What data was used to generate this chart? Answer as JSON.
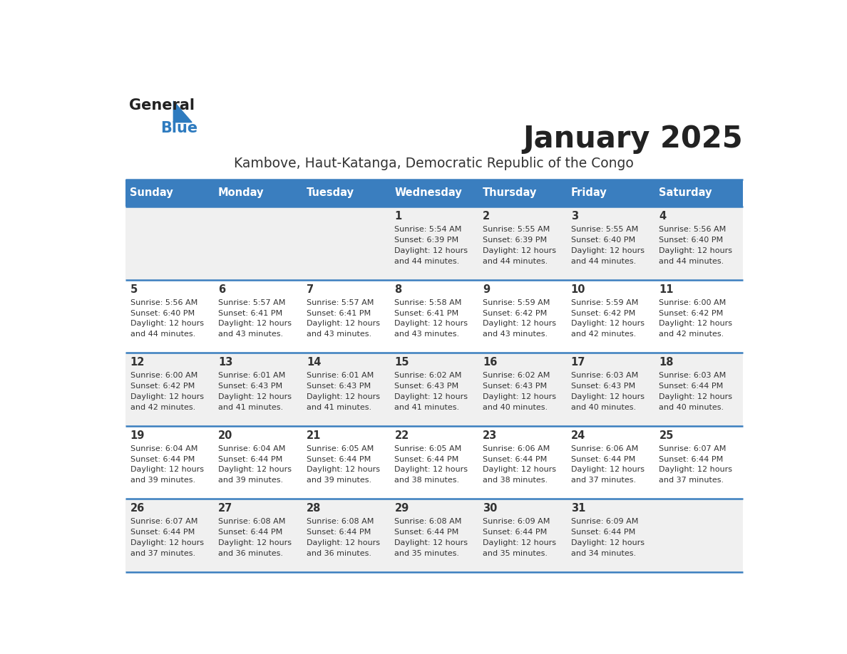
{
  "title": "January 2025",
  "subtitle": "Kambove, Haut-Katanga, Democratic Republic of the Congo",
  "days_of_week": [
    "Sunday",
    "Monday",
    "Tuesday",
    "Wednesday",
    "Thursday",
    "Friday",
    "Saturday"
  ],
  "header_bg": "#3a7ebf",
  "header_text": "#ffffff",
  "row_bg_odd": "#f0f0f0",
  "row_bg_even": "#ffffff",
  "separator_color": "#3a7ebf",
  "title_color": "#222222",
  "subtitle_color": "#333333",
  "day_number_color": "#333333",
  "cell_text_color": "#333333",
  "calendar_data": [
    {
      "day": 1,
      "col": 3,
      "row": 0,
      "sunrise": "5:54 AM",
      "sunset": "6:39 PM",
      "dl_line1": "Daylight: 12 hours",
      "dl_line2": "and 44 minutes."
    },
    {
      "day": 2,
      "col": 4,
      "row": 0,
      "sunrise": "5:55 AM",
      "sunset": "6:39 PM",
      "dl_line1": "Daylight: 12 hours",
      "dl_line2": "and 44 minutes."
    },
    {
      "day": 3,
      "col": 5,
      "row": 0,
      "sunrise": "5:55 AM",
      "sunset": "6:40 PM",
      "dl_line1": "Daylight: 12 hours",
      "dl_line2": "and 44 minutes."
    },
    {
      "day": 4,
      "col": 6,
      "row": 0,
      "sunrise": "5:56 AM",
      "sunset": "6:40 PM",
      "dl_line1": "Daylight: 12 hours",
      "dl_line2": "and 44 minutes."
    },
    {
      "day": 5,
      "col": 0,
      "row": 1,
      "sunrise": "5:56 AM",
      "sunset": "6:40 PM",
      "dl_line1": "Daylight: 12 hours",
      "dl_line2": "and 44 minutes."
    },
    {
      "day": 6,
      "col": 1,
      "row": 1,
      "sunrise": "5:57 AM",
      "sunset": "6:41 PM",
      "dl_line1": "Daylight: 12 hours",
      "dl_line2": "and 43 minutes."
    },
    {
      "day": 7,
      "col": 2,
      "row": 1,
      "sunrise": "5:57 AM",
      "sunset": "6:41 PM",
      "dl_line1": "Daylight: 12 hours",
      "dl_line2": "and 43 minutes."
    },
    {
      "day": 8,
      "col": 3,
      "row": 1,
      "sunrise": "5:58 AM",
      "sunset": "6:41 PM",
      "dl_line1": "Daylight: 12 hours",
      "dl_line2": "and 43 minutes."
    },
    {
      "day": 9,
      "col": 4,
      "row": 1,
      "sunrise": "5:59 AM",
      "sunset": "6:42 PM",
      "dl_line1": "Daylight: 12 hours",
      "dl_line2": "and 43 minutes."
    },
    {
      "day": 10,
      "col": 5,
      "row": 1,
      "sunrise": "5:59 AM",
      "sunset": "6:42 PM",
      "dl_line1": "Daylight: 12 hours",
      "dl_line2": "and 42 minutes."
    },
    {
      "day": 11,
      "col": 6,
      "row": 1,
      "sunrise": "6:00 AM",
      "sunset": "6:42 PM",
      "dl_line1": "Daylight: 12 hours",
      "dl_line2": "and 42 minutes."
    },
    {
      "day": 12,
      "col": 0,
      "row": 2,
      "sunrise": "6:00 AM",
      "sunset": "6:42 PM",
      "dl_line1": "Daylight: 12 hours",
      "dl_line2": "and 42 minutes."
    },
    {
      "day": 13,
      "col": 1,
      "row": 2,
      "sunrise": "6:01 AM",
      "sunset": "6:43 PM",
      "dl_line1": "Daylight: 12 hours",
      "dl_line2": "and 41 minutes."
    },
    {
      "day": 14,
      "col": 2,
      "row": 2,
      "sunrise": "6:01 AM",
      "sunset": "6:43 PM",
      "dl_line1": "Daylight: 12 hours",
      "dl_line2": "and 41 minutes."
    },
    {
      "day": 15,
      "col": 3,
      "row": 2,
      "sunrise": "6:02 AM",
      "sunset": "6:43 PM",
      "dl_line1": "Daylight: 12 hours",
      "dl_line2": "and 41 minutes."
    },
    {
      "day": 16,
      "col": 4,
      "row": 2,
      "sunrise": "6:02 AM",
      "sunset": "6:43 PM",
      "dl_line1": "Daylight: 12 hours",
      "dl_line2": "and 40 minutes."
    },
    {
      "day": 17,
      "col": 5,
      "row": 2,
      "sunrise": "6:03 AM",
      "sunset": "6:43 PM",
      "dl_line1": "Daylight: 12 hours",
      "dl_line2": "and 40 minutes."
    },
    {
      "day": 18,
      "col": 6,
      "row": 2,
      "sunrise": "6:03 AM",
      "sunset": "6:44 PM",
      "dl_line1": "Daylight: 12 hours",
      "dl_line2": "and 40 minutes."
    },
    {
      "day": 19,
      "col": 0,
      "row": 3,
      "sunrise": "6:04 AM",
      "sunset": "6:44 PM",
      "dl_line1": "Daylight: 12 hours",
      "dl_line2": "and 39 minutes."
    },
    {
      "day": 20,
      "col": 1,
      "row": 3,
      "sunrise": "6:04 AM",
      "sunset": "6:44 PM",
      "dl_line1": "Daylight: 12 hours",
      "dl_line2": "and 39 minutes."
    },
    {
      "day": 21,
      "col": 2,
      "row": 3,
      "sunrise": "6:05 AM",
      "sunset": "6:44 PM",
      "dl_line1": "Daylight: 12 hours",
      "dl_line2": "and 39 minutes."
    },
    {
      "day": 22,
      "col": 3,
      "row": 3,
      "sunrise": "6:05 AM",
      "sunset": "6:44 PM",
      "dl_line1": "Daylight: 12 hours",
      "dl_line2": "and 38 minutes."
    },
    {
      "day": 23,
      "col": 4,
      "row": 3,
      "sunrise": "6:06 AM",
      "sunset": "6:44 PM",
      "dl_line1": "Daylight: 12 hours",
      "dl_line2": "and 38 minutes."
    },
    {
      "day": 24,
      "col": 5,
      "row": 3,
      "sunrise": "6:06 AM",
      "sunset": "6:44 PM",
      "dl_line1": "Daylight: 12 hours",
      "dl_line2": "and 37 minutes."
    },
    {
      "day": 25,
      "col": 6,
      "row": 3,
      "sunrise": "6:07 AM",
      "sunset": "6:44 PM",
      "dl_line1": "Daylight: 12 hours",
      "dl_line2": "and 37 minutes."
    },
    {
      "day": 26,
      "col": 0,
      "row": 4,
      "sunrise": "6:07 AM",
      "sunset": "6:44 PM",
      "dl_line1": "Daylight: 12 hours",
      "dl_line2": "and 37 minutes."
    },
    {
      "day": 27,
      "col": 1,
      "row": 4,
      "sunrise": "6:08 AM",
      "sunset": "6:44 PM",
      "dl_line1": "Daylight: 12 hours",
      "dl_line2": "and 36 minutes."
    },
    {
      "day": 28,
      "col": 2,
      "row": 4,
      "sunrise": "6:08 AM",
      "sunset": "6:44 PM",
      "dl_line1": "Daylight: 12 hours",
      "dl_line2": "and 36 minutes."
    },
    {
      "day": 29,
      "col": 3,
      "row": 4,
      "sunrise": "6:08 AM",
      "sunset": "6:44 PM",
      "dl_line1": "Daylight: 12 hours",
      "dl_line2": "and 35 minutes."
    },
    {
      "day": 30,
      "col": 4,
      "row": 4,
      "sunrise": "6:09 AM",
      "sunset": "6:44 PM",
      "dl_line1": "Daylight: 12 hours",
      "dl_line2": "and 35 minutes."
    },
    {
      "day": 31,
      "col": 5,
      "row": 4,
      "sunrise": "6:09 AM",
      "sunset": "6:44 PM",
      "dl_line1": "Daylight: 12 hours",
      "dl_line2": "and 34 minutes."
    }
  ]
}
